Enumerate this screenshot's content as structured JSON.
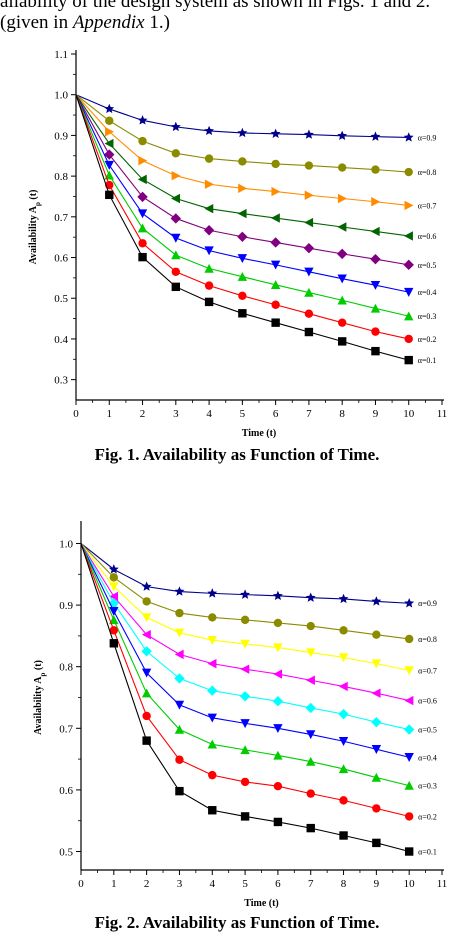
{
  "header": {
    "line1": "ailability of the design system as shown in Figs. 1 and 2.",
    "line2_prefix": "given in ",
    "line2_italic": "Appendix",
    "line2_suffix": " 1.)"
  },
  "figures": [
    {
      "caption": "Fig. 1. Availability as Function of Time.",
      "xlabel": "Time (t)",
      "ylabel": "Availability A",
      "ylabel_sub": "p",
      "ylabel_suffix": " (t)"
    },
    {
      "caption": "Fig. 2. Availability as Function of Time.",
      "xlabel": "Time (t)",
      "ylabel": "Availability A",
      "ylabel_sub": "p",
      "ylabel_suffix": " (t)"
    }
  ],
  "chart_data": [
    {
      "type": "line",
      "xlabel": "Time (t)",
      "ylabel": "Availability Ap (t)",
      "xlim": [
        0,
        11
      ],
      "ylim": [
        0.25,
        1.1
      ],
      "xticks": [
        0,
        1,
        2,
        3,
        4,
        5,
        6,
        7,
        8,
        9,
        10,
        11
      ],
      "yticks": [
        0.3,
        0.4,
        0.5,
        0.6,
        0.7,
        0.8,
        0.9,
        1.0,
        1.1
      ],
      "x": [
        0,
        1,
        2,
        3,
        4,
        5,
        6,
        7,
        8,
        9,
        10
      ],
      "series": [
        {
          "name": "α=0.9",
          "color": "#00008b",
          "marker": "star",
          "values": [
            1.0,
            0.965,
            0.937,
            0.921,
            0.911,
            0.906,
            0.904,
            0.902,
            0.899,
            0.897,
            0.895
          ]
        },
        {
          "name": "α=0.8",
          "color": "#8b8b00",
          "marker": "circle",
          "values": [
            1.0,
            0.936,
            0.886,
            0.856,
            0.843,
            0.836,
            0.83,
            0.826,
            0.821,
            0.816,
            0.81
          ]
        },
        {
          "name": "α=0.7",
          "color": "#ff8c00",
          "marker": "triangle-right",
          "values": [
            1.0,
            0.909,
            0.838,
            0.801,
            0.78,
            0.77,
            0.762,
            0.753,
            0.745,
            0.737,
            0.728
          ]
        },
        {
          "name": "α=0.6",
          "color": "#006400",
          "marker": "triangle-left",
          "values": [
            1.0,
            0.88,
            0.792,
            0.745,
            0.72,
            0.708,
            0.697,
            0.686,
            0.675,
            0.664,
            0.653
          ]
        },
        {
          "name": "α=0.5",
          "color": "#800080",
          "marker": "diamond",
          "values": [
            1.0,
            0.853,
            0.749,
            0.696,
            0.667,
            0.651,
            0.637,
            0.623,
            0.609,
            0.596,
            0.582
          ]
        },
        {
          "name": "α=0.4",
          "color": "#0000ff",
          "marker": "triangle-down",
          "values": [
            1.0,
            0.827,
            0.708,
            0.648,
            0.617,
            0.598,
            0.582,
            0.565,
            0.548,
            0.532,
            0.515
          ]
        },
        {
          "name": "α=0.3",
          "color": "#00cc00",
          "marker": "triangle-up",
          "values": [
            1.0,
            0.802,
            0.672,
            0.606,
            0.573,
            0.553,
            0.533,
            0.514,
            0.495,
            0.475,
            0.456
          ]
        },
        {
          "name": "α=0.2",
          "color": "#ff0000",
          "marker": "circle",
          "values": [
            1.0,
            0.778,
            0.635,
            0.565,
            0.531,
            0.506,
            0.484,
            0.462,
            0.44,
            0.418,
            0.4
          ]
        },
        {
          "name": "α=0.1",
          "color": "#000000",
          "marker": "square",
          "values": [
            1.0,
            0.754,
            0.601,
            0.528,
            0.491,
            0.463,
            0.44,
            0.417,
            0.394,
            0.37,
            0.348
          ]
        }
      ]
    },
    {
      "type": "line",
      "xlabel": "Time (t)",
      "ylabel": "Availability Ap (t)",
      "xlim": [
        0,
        11
      ],
      "ylim": [
        0.47,
        1.03
      ],
      "xticks": [
        0,
        1,
        2,
        3,
        4,
        5,
        6,
        7,
        8,
        9,
        10,
        11
      ],
      "yticks": [
        0.5,
        0.6,
        0.7,
        0.8,
        0.9,
        1.0
      ],
      "x": [
        0,
        1,
        2,
        3,
        4,
        5,
        6,
        7,
        8,
        9,
        10
      ],
      "series": [
        {
          "name": "α=0.9",
          "color": "#00008b",
          "marker": "star",
          "values": [
            1.0,
            0.958,
            0.93,
            0.922,
            0.919,
            0.917,
            0.915,
            0.912,
            0.91,
            0.906,
            0.903
          ]
        },
        {
          "name": "α=0.8",
          "color": "#8b8b00",
          "marker": "circle",
          "values": [
            1.0,
            0.945,
            0.906,
            0.887,
            0.88,
            0.876,
            0.871,
            0.866,
            0.859,
            0.852,
            0.845
          ]
        },
        {
          "name": "α=0.7",
          "color": "#ffff00",
          "marker": "triangle-down",
          "values": [
            1.0,
            0.93,
            0.88,
            0.855,
            0.843,
            0.837,
            0.831,
            0.823,
            0.815,
            0.805,
            0.794
          ]
        },
        {
          "name": "α=0.6",
          "color": "#ff00ff",
          "marker": "triangle-left",
          "values": [
            1.0,
            0.914,
            0.852,
            0.82,
            0.805,
            0.796,
            0.788,
            0.778,
            0.768,
            0.757,
            0.745
          ]
        },
        {
          "name": "α=0.5",
          "color": "#00ffff",
          "marker": "diamond",
          "values": [
            1.0,
            0.903,
            0.825,
            0.781,
            0.761,
            0.752,
            0.744,
            0.733,
            0.723,
            0.71,
            0.698
          ]
        },
        {
          "name": "α=0.4",
          "color": "#0000ff",
          "marker": "triangle-down",
          "values": [
            1.0,
            0.89,
            0.79,
            0.738,
            0.717,
            0.708,
            0.7,
            0.69,
            0.679,
            0.666,
            0.653
          ]
        },
        {
          "name": "α=0.3",
          "color": "#00cc00",
          "marker": "triangle-up",
          "values": [
            1.0,
            0.876,
            0.757,
            0.698,
            0.674,
            0.665,
            0.656,
            0.646,
            0.634,
            0.62,
            0.607
          ]
        },
        {
          "name": "α=0.2",
          "color": "#ff0000",
          "marker": "circle",
          "values": [
            1.0,
            0.859,
            0.72,
            0.649,
            0.624,
            0.613,
            0.606,
            0.594,
            0.583,
            0.57,
            0.557
          ]
        },
        {
          "name": "α=0.1",
          "color": "#000000",
          "marker": "square",
          "values": [
            1.0,
            0.838,
            0.68,
            0.598,
            0.567,
            0.557,
            0.548,
            0.538,
            0.526,
            0.514,
            0.5
          ]
        }
      ]
    }
  ]
}
